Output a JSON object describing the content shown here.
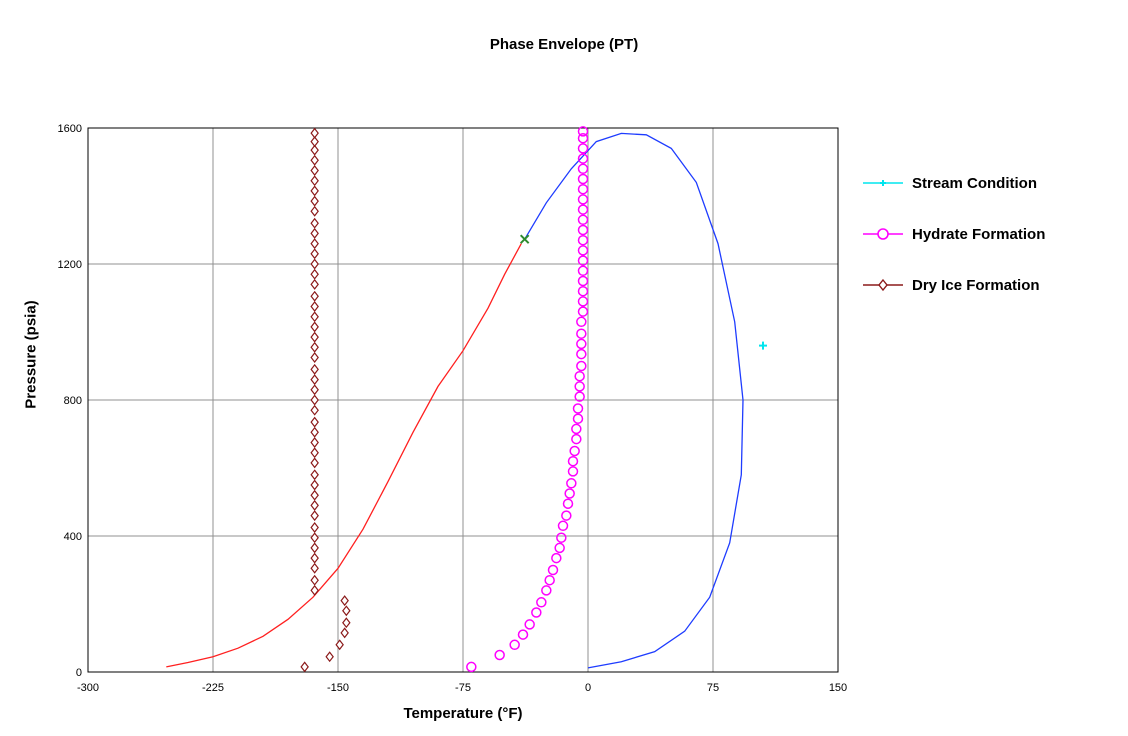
{
  "chart_data": {
    "type": "scatter",
    "title": "Phase Envelope (PT)",
    "xlabel": "Temperature (°F)",
    "ylabel": "Pressure (psia)",
    "xlim": [
      -300,
      150
    ],
    "ylim": [
      0,
      1600
    ],
    "xticks": [
      -300,
      -225,
      -150,
      -75,
      0,
      75,
      150
    ],
    "yticks": [
      0,
      400,
      800,
      1200,
      1600
    ],
    "grid": true,
    "legend_position": "right",
    "colors": {
      "stream": "#00e5ee",
      "hydrate": "#ff00ff",
      "dryice": "#8b1a1a",
      "bubble": "#ff2020",
      "dew": "#1e3cff",
      "critical": "#2e8b2e"
    },
    "curves": {
      "bubble": [
        [
          -253,
          15
        ],
        [
          -240,
          28
        ],
        [
          -225,
          45
        ],
        [
          -210,
          70
        ],
        [
          -195,
          105
        ],
        [
          -180,
          155
        ],
        [
          -165,
          220
        ],
        [
          -150,
          305
        ],
        [
          -135,
          420
        ],
        [
          -120,
          560
        ],
        [
          -105,
          705
        ],
        [
          -90,
          840
        ],
        [
          -75,
          945
        ],
        [
          -60,
          1070
        ],
        [
          -50,
          1170
        ],
        [
          -40,
          1260
        ]
      ],
      "dew": [
        [
          -38,
          1273
        ],
        [
          -25,
          1380
        ],
        [
          -10,
          1480
        ],
        [
          5,
          1560
        ],
        [
          20,
          1584
        ],
        [
          35,
          1580
        ],
        [
          50,
          1540
        ],
        [
          65,
          1440
        ],
        [
          78,
          1260
        ],
        [
          88,
          1030
        ],
        [
          93,
          800
        ],
        [
          92,
          580
        ],
        [
          85,
          380
        ],
        [
          73,
          220
        ],
        [
          58,
          120
        ],
        [
          40,
          60
        ],
        [
          20,
          30
        ],
        [
          0,
          12
        ]
      ],
      "critical_point": [
        -38,
        1273
      ]
    },
    "series": [
      {
        "name": "Stream Condition",
        "marker": "cross",
        "points": [
          [
            105,
            960
          ]
        ]
      },
      {
        "name": "Hydrate Formation",
        "marker": "circle",
        "points": [
          [
            -70,
            15
          ],
          [
            -53,
            50
          ],
          [
            -44,
            80
          ],
          [
            -39,
            110
          ],
          [
            -35,
            140
          ],
          [
            -31,
            175
          ],
          [
            -28,
            205
          ],
          [
            -25,
            240
          ],
          [
            -23,
            270
          ],
          [
            -21,
            300
          ],
          [
            -19,
            335
          ],
          [
            -17,
            365
          ],
          [
            -16,
            395
          ],
          [
            -15,
            430
          ],
          [
            -13,
            460
          ],
          [
            -12,
            495
          ],
          [
            -11,
            525
          ],
          [
            -10,
            555
          ],
          [
            -9,
            590
          ],
          [
            -9,
            620
          ],
          [
            -8,
            650
          ],
          [
            -7,
            685
          ],
          [
            -7,
            715
          ],
          [
            -6,
            745
          ],
          [
            -6,
            775
          ],
          [
            -5,
            810
          ],
          [
            -5,
            840
          ],
          [
            -5,
            870
          ],
          [
            -4,
            900
          ],
          [
            -4,
            935
          ],
          [
            -4,
            965
          ],
          [
            -4,
            995
          ],
          [
            -4,
            1030
          ],
          [
            -3,
            1060
          ],
          [
            -3,
            1090
          ],
          [
            -3,
            1120
          ],
          [
            -3,
            1150
          ],
          [
            -3,
            1180
          ],
          [
            -3,
            1210
          ],
          [
            -3,
            1240
          ],
          [
            -3,
            1270
          ],
          [
            -3,
            1300
          ],
          [
            -3,
            1330
          ],
          [
            -3,
            1360
          ],
          [
            -3,
            1390
          ],
          [
            -3,
            1420
          ],
          [
            -3,
            1450
          ],
          [
            -3,
            1480
          ],
          [
            -3,
            1510
          ],
          [
            -3,
            1540
          ],
          [
            -3,
            1570
          ],
          [
            -3,
            1590
          ]
        ]
      },
      {
        "name": "Dry Ice Formation",
        "marker": "diamond",
        "points": [
          [
            -170,
            15
          ],
          [
            -155,
            45
          ],
          [
            -149,
            80
          ],
          [
            -146,
            115
          ],
          [
            -145,
            145
          ],
          [
            -145,
            180
          ],
          [
            -146,
            210
          ],
          [
            -164,
            240
          ],
          [
            -164,
            270
          ],
          [
            -164,
            305
          ],
          [
            -164,
            335
          ],
          [
            -164,
            365
          ],
          [
            -164,
            395
          ],
          [
            -164,
            425
          ],
          [
            -164,
            460
          ],
          [
            -164,
            490
          ],
          [
            -164,
            520
          ],
          [
            -164,
            550
          ],
          [
            -164,
            580
          ],
          [
            -164,
            615
          ],
          [
            -164,
            645
          ],
          [
            -164,
            675
          ],
          [
            -164,
            705
          ],
          [
            -164,
            735
          ],
          [
            -164,
            770
          ],
          [
            -164,
            800
          ],
          [
            -164,
            830
          ],
          [
            -164,
            860
          ],
          [
            -164,
            890
          ],
          [
            -164,
            925
          ],
          [
            -164,
            955
          ],
          [
            -164,
            985
          ],
          [
            -164,
            1015
          ],
          [
            -164,
            1045
          ],
          [
            -164,
            1075
          ],
          [
            -164,
            1105
          ],
          [
            -164,
            1140
          ],
          [
            -164,
            1170
          ],
          [
            -164,
            1200
          ],
          [
            -164,
            1230
          ],
          [
            -164,
            1260
          ],
          [
            -164,
            1290
          ],
          [
            -164,
            1320
          ],
          [
            -164,
            1355
          ],
          [
            -164,
            1385
          ],
          [
            -164,
            1415
          ],
          [
            -164,
            1445
          ],
          [
            -164,
            1475
          ],
          [
            -164,
            1505
          ],
          [
            -164,
            1535
          ],
          [
            -164,
            1560
          ],
          [
            -164,
            1585
          ]
        ]
      }
    ]
  }
}
